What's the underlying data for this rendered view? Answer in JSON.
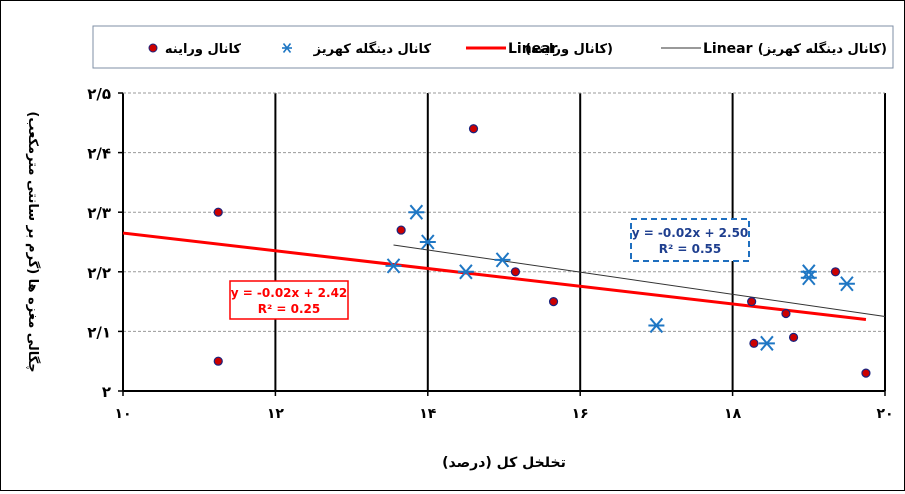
{
  "chart_data": {
    "type": "scatter",
    "xlabel": "تخلخل کل (درصد)",
    "ylabel": "چگالی مغزه ها (گرم بر سانتی مترمکعب)",
    "xlim": [
      10,
      20
    ],
    "ylim": [
      2.0,
      2.5
    ],
    "x_ticks": [
      10,
      12,
      14,
      16,
      18,
      20
    ],
    "x_tick_labels": [
      "۱۰",
      "۱۲",
      "۱۴",
      "۱۶",
      "۱۸",
      "۲۰"
    ],
    "y_ticks": [
      2.0,
      2.1,
      2.2,
      2.3,
      2.4,
      2.5
    ],
    "y_tick_labels": [
      "۲",
      "۲/۱",
      "۲/۲",
      "۲/۳",
      "۲/۴",
      "۲/۵"
    ],
    "grid": "horizontal dashed, vertical solid",
    "legend_position": "top",
    "legend": [
      {
        "label": "کانال وراینه",
        "marker": "circle"
      },
      {
        "label": "کانال دینگله کهریز",
        "marker": "asterisk"
      },
      {
        "label": "Linear",
        "suffix": "(کانال وراینه)",
        "line": "red-thick"
      },
      {
        "label": "Linear",
        "suffix": "(کانال دینگله کهریز)",
        "line": "black-thin"
      }
    ],
    "series": [
      {
        "name": "کانال وراینه",
        "marker": "circle",
        "color": "#cc0000",
        "points": [
          [
            11.25,
            2.3
          ],
          [
            11.25,
            2.05
          ],
          [
            13.65,
            2.27
          ],
          [
            14.6,
            2.44
          ],
          [
            15.15,
            2.2
          ],
          [
            15.65,
            2.15
          ],
          [
            18.25,
            2.15
          ],
          [
            18.28,
            2.08
          ],
          [
            18.7,
            2.13
          ],
          [
            18.8,
            2.09
          ],
          [
            19.35,
            2.2
          ],
          [
            19.75,
            2.03
          ]
        ]
      },
      {
        "name": "کانال دینگله کهریز",
        "marker": "asterisk",
        "color": "#1f77c4",
        "points": [
          [
            13.55,
            2.21
          ],
          [
            13.85,
            2.3
          ],
          [
            14.0,
            2.25
          ],
          [
            14.5,
            2.2
          ],
          [
            14.98,
            2.22
          ],
          [
            17.0,
            2.11
          ],
          [
            18.45,
            2.08
          ],
          [
            19.0,
            2.2
          ],
          [
            19.0,
            2.19
          ],
          [
            19.5,
            2.18
          ]
        ]
      }
    ],
    "trendlines": [
      {
        "series": "کانال وراینه",
        "color": "#ff0000",
        "x": [
          10,
          19.75
        ],
        "y": [
          2.265,
          2.12
        ],
        "equation": "y = -0.02x + 2.42",
        "r2": "R² = 0.25",
        "box_style": "solid",
        "box_color": "#ff0000"
      },
      {
        "series": "کانال دینگله کهریز",
        "color": "#333333",
        "x": [
          13.55,
          20
        ],
        "y": [
          2.245,
          2.125
        ],
        "equation": "y = -0.02x + 2.50",
        "r2": "R² = 0.55",
        "box_style": "dashed",
        "box_color": "#1f6fbf"
      }
    ]
  }
}
